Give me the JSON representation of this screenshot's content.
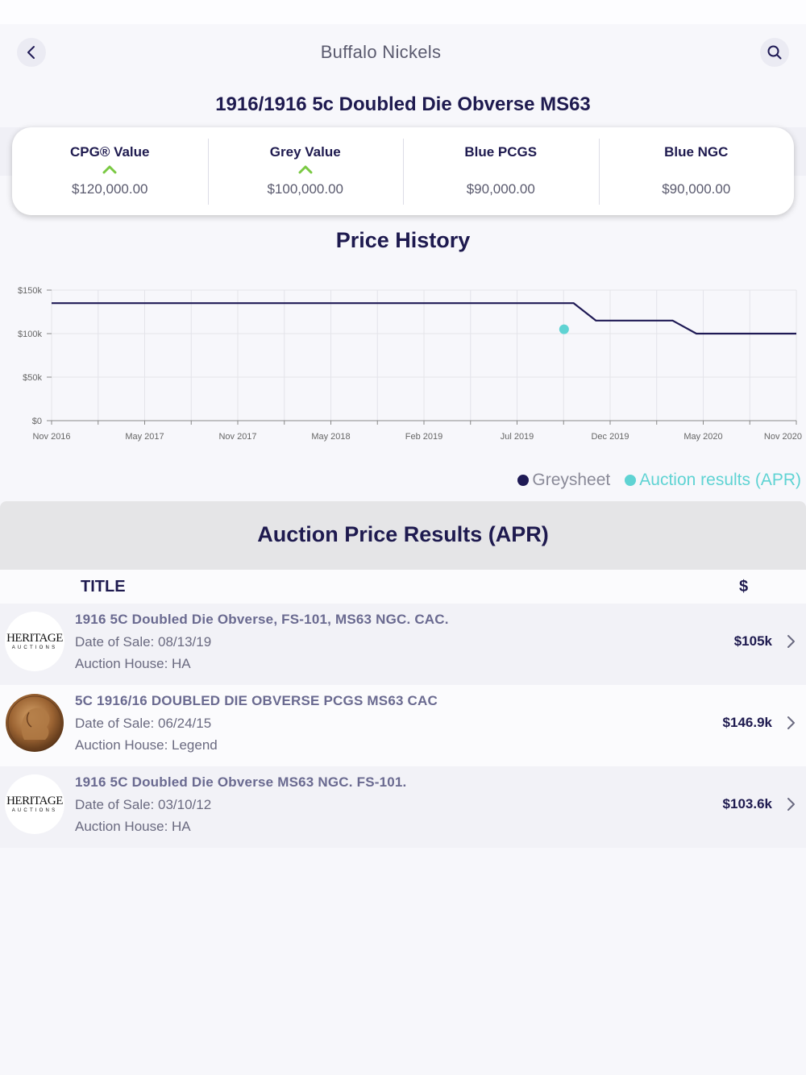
{
  "nav": {
    "title": "Buffalo Nickels",
    "back_icon": "chevron-left-icon",
    "search_icon": "search-icon"
  },
  "coin": {
    "title": "1916/1916 5c Doubled Die Obverse MS63"
  },
  "values": [
    {
      "label": "CPG® Value",
      "amount": "$120,000.00",
      "trend": "up"
    },
    {
      "label": "Grey Value",
      "amount": "$100,000.00",
      "trend": "up"
    },
    {
      "label": "Blue PCGS",
      "amount": "$90,000.00",
      "trend": ""
    },
    {
      "label": "Blue NGC",
      "amount": "$90,000.00",
      "trend": ""
    }
  ],
  "colors": {
    "greysheet": "#1f1a55",
    "auction": "#5fd3d3",
    "trend_up": "#7ac943"
  },
  "chart_data": {
    "type": "line",
    "title": "Price History",
    "x_ticks": [
      "Nov 2016",
      "May 2017",
      "Nov 2017",
      "May 2018",
      "Feb 2019",
      "Jul 2019",
      "Dec 2019",
      "May 2020",
      "Nov 2020"
    ],
    "y_ticks": [
      "$0",
      "$50k",
      "$100k",
      "$150k"
    ],
    "ylim": [
      0,
      150000
    ],
    "xlim": [
      "2016-11-01",
      "2020-11-15"
    ],
    "series": [
      {
        "name": "Greysheet",
        "points": [
          {
            "date": "2016-11-01",
            "value": 135000
          },
          {
            "date": "2019-09-01",
            "value": 135000
          },
          {
            "date": "2019-10-15",
            "value": 115000
          },
          {
            "date": "2020-03-15",
            "value": 115000
          },
          {
            "date": "2020-05-01",
            "value": 100000
          },
          {
            "date": "2020-11-15",
            "value": 100000
          }
        ]
      },
      {
        "name": "Auction results (APR)",
        "points": [
          {
            "date": "2019-08-13",
            "value": 105000
          }
        ]
      }
    ],
    "legend": "bottom-right"
  },
  "apr": {
    "title": "Auction Price Results (APR)",
    "col_title": "TITLE",
    "col_price": "$",
    "rows": [
      {
        "name": "1916 5C Doubled Die Obverse, FS-101, MS63 NGC. CAC.",
        "date": "Date of Sale:  08/13/19",
        "house": "Auction House:  HA",
        "price": "$105k",
        "logo": "heritage"
      },
      {
        "name": "5C 1916/16 DOUBLED DIE OBVERSE PCGS MS63 CAC",
        "date": "Date of Sale:  06/24/15",
        "house": "Auction House:  Legend",
        "price": "$146.9k",
        "logo": "coin"
      },
      {
        "name": "1916 5C Doubled Die Obverse MS63 NGC. FS-101.",
        "date": "Date of Sale:  03/10/12",
        "house": "Auction House:  HA",
        "price": "$103.6k",
        "logo": "heritage"
      }
    ],
    "heritage_logo": {
      "line1": "HERITAGE",
      "line2": "AUCTIONS"
    }
  }
}
